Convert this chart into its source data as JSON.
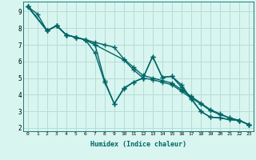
{
  "xlabel": "Humidex (Indice chaleur)",
  "bg_color": "#d8f5f0",
  "grid_color": "#b8ddd8",
  "line_color": "#006666",
  "line_width": 1.0,
  "marker": "+",
  "marker_size": 4,
  "marker_lw": 1.0,
  "xlim": [
    -0.5,
    23.5
  ],
  "ylim": [
    1.8,
    9.6
  ],
  "xticks": [
    0,
    1,
    2,
    3,
    4,
    5,
    6,
    7,
    8,
    9,
    10,
    11,
    12,
    13,
    14,
    15,
    16,
    17,
    18,
    19,
    20,
    21,
    22,
    23
  ],
  "yticks": [
    2,
    3,
    4,
    5,
    6,
    7,
    8,
    9
  ],
  "series": [
    {
      "x": [
        0,
        1,
        2,
        3,
        4,
        5,
        6,
        7,
        8,
        9,
        10,
        11,
        12,
        13,
        14,
        15,
        16,
        17,
        18,
        19,
        20,
        21,
        22,
        23
      ],
      "y": [
        9.3,
        8.85,
        7.85,
        8.15,
        7.6,
        7.45,
        7.3,
        7.0,
        4.85,
        3.45,
        4.35,
        4.75,
        5.0,
        6.3,
        5.05,
        5.1,
        4.6,
        3.75,
        3.0,
        2.65,
        2.6,
        2.5,
        2.45,
        2.2
      ]
    },
    {
      "x": [
        0,
        2,
        3,
        4,
        5,
        6,
        7,
        8,
        9,
        10,
        11,
        12,
        13,
        14,
        15,
        16,
        17,
        18,
        19,
        20,
        21,
        22,
        23
      ],
      "y": [
        9.3,
        7.85,
        8.15,
        7.6,
        7.45,
        7.3,
        7.15,
        7.0,
        6.85,
        6.15,
        5.65,
        5.15,
        5.0,
        4.85,
        4.7,
        4.3,
        3.9,
        3.5,
        3.1,
        2.85,
        2.6,
        2.45,
        2.2
      ]
    },
    {
      "x": [
        0,
        2,
        3,
        4,
        5,
        6,
        7,
        10,
        11,
        12,
        13,
        14,
        15,
        16,
        17,
        18,
        19,
        20,
        21,
        22,
        23
      ],
      "y": [
        9.3,
        7.85,
        8.15,
        7.6,
        7.45,
        7.3,
        7.0,
        6.1,
        5.5,
        5.0,
        4.9,
        4.75,
        4.6,
        4.2,
        3.8,
        3.45,
        3.05,
        2.8,
        2.6,
        2.45,
        2.2
      ]
    },
    {
      "x": [
        0,
        2,
        3,
        4,
        5,
        6,
        7,
        8,
        9,
        10,
        11,
        12,
        13,
        14,
        15,
        16,
        17,
        18,
        19,
        20,
        21,
        22,
        23
      ],
      "y": [
        9.3,
        7.85,
        8.15,
        7.6,
        7.45,
        7.3,
        6.5,
        4.75,
        3.45,
        4.4,
        4.75,
        5.0,
        6.3,
        5.05,
        5.1,
        4.45,
        3.8,
        3.0,
        2.65,
        2.6,
        2.5,
        2.45,
        2.2
      ]
    }
  ]
}
